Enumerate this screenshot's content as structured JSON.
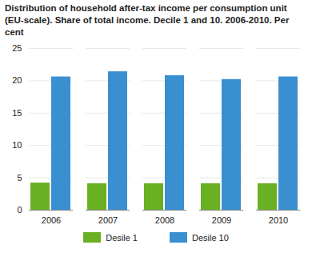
{
  "chart_data": {
    "type": "bar",
    "title": "Distribution of household after-tax income per consumption unit (EU-scale). Share of total income. Decile 1 and 10. 2006-2010. Per cent",
    "categories": [
      "2006",
      "2007",
      "2008",
      "2009",
      "2010"
    ],
    "series": [
      {
        "name": "Desile 1",
        "color": "#6ab023",
        "values": [
          4.2,
          4.1,
          4.1,
          4.1,
          4.1
        ]
      },
      {
        "name": "Desile 10",
        "color": "#3a8fd0",
        "values": [
          20.6,
          21.4,
          20.8,
          20.2,
          20.6
        ]
      }
    ],
    "ylim": [
      0,
      25
    ],
    "yticks": [
      0,
      5,
      10,
      15,
      20,
      25
    ],
    "grid": true,
    "legend": "bottom"
  }
}
